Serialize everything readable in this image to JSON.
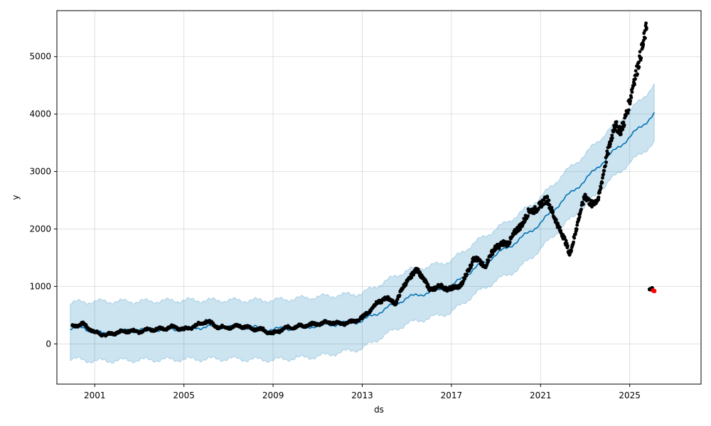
{
  "chart_data": {
    "type": "line",
    "xlabel": "ds",
    "ylabel": "y",
    "xlim": [
      1999.3,
      2028.2
    ],
    "ylim": [
      -700,
      5800
    ],
    "xticks": [
      2001,
      2005,
      2009,
      2013,
      2017,
      2021,
      2025
    ],
    "xtick_labels": [
      "2001",
      "2005",
      "2009",
      "2013",
      "2017",
      "2021",
      "2025"
    ],
    "yticks": [
      0,
      1000,
      2000,
      3000,
      4000,
      5000
    ],
    "ytick_labels": [
      "0",
      "1000",
      "2000",
      "3000",
      "4000",
      "5000"
    ],
    "grid": true,
    "colors": {
      "forecast": "#0072B2",
      "interval": "#0072B2",
      "observed": "#000000",
      "outlier": "#FF0000"
    },
    "series": [
      {
        "kind": "observed",
        "x": [
          2000.0,
          2000.5,
          2001.0,
          2001.5,
          2002.0,
          2002.5,
          2003.0,
          2003.5,
          2004.0,
          2004.5,
          2005.0,
          2005.5,
          2006.0,
          2006.5,
          2007.0,
          2007.5,
          2008.0,
          2008.5,
          2009.0,
          2009.5,
          2010.0,
          2010.5,
          2011.0,
          2011.5,
          2012.0,
          2012.5,
          2013.0,
          2013.5,
          2014.0,
          2014.5,
          2015.0,
          2015.5,
          2016.0,
          2016.5,
          2017.0,
          2017.5,
          2018.0,
          2018.5,
          2019.0,
          2019.5,
          2020.0,
          2020.5,
          2021.0,
          2021.3,
          2021.6,
          2022.0,
          2022.3,
          2022.6,
          2023.0,
          2023.3,
          2023.6,
          2024.0,
          2024.3,
          2024.6,
          2025.0,
          2025.2,
          2025.4,
          2025.6,
          2025.75
        ],
        "y": [
          320,
          340,
          200,
          150,
          200,
          230,
          210,
          250,
          260,
          300,
          250,
          310,
          400,
          300,
          280,
          320,
          270,
          250,
          180,
          270,
          300,
          320,
          350,
          380,
          350,
          380,
          450,
          650,
          800,
          720,
          1100,
          1300,
          950,
          1000,
          950,
          1050,
          1500,
          1350,
          1700,
          1750,
          2000,
          2300,
          2400,
          2550,
          2200,
          1900,
          1550,
          2000,
          2600,
          2400,
          2550,
          3300,
          3800,
          3700,
          4200,
          4600,
          4900,
          5200,
          5500
        ]
      },
      {
        "kind": "outlier",
        "x": [
          2025.9,
          2026.0,
          2026.05,
          2026.1
        ],
        "y": [
          950,
          970,
          930,
          920
        ]
      },
      {
        "kind": "forecast",
        "x": [
          1999.9,
          2000.5,
          2001.0,
          2001.5,
          2002.0,
          2003.0,
          2004.0,
          2005.0,
          2006.0,
          2007.0,
          2008.0,
          2009.0,
          2010.0,
          2011.0,
          2012.0,
          2013.0,
          2014.0,
          2015.0,
          2016.0,
          2017.0,
          2018.0,
          2019.0,
          2020.0,
          2021.0,
          2022.0,
          2023.0,
          2024.0,
          2025.0,
          2026.1
        ],
        "y": [
          270,
          280,
          200,
          170,
          220,
          240,
          250,
          260,
          300,
          300,
          290,
          250,
          280,
          320,
          350,
          400,
          600,
          800,
          900,
          1000,
          1300,
          1550,
          1800,
          2100,
          2500,
          2850,
          3250,
          3600,
          4000
        ]
      },
      {
        "kind": "interval",
        "x": [
          1999.9,
          2001.0,
          2003.0,
          2005.0,
          2007.0,
          2009.0,
          2011.0,
          2013.0,
          2014.0,
          2015.0,
          2016.0,
          2017.0,
          2018.0,
          2019.0,
          2020.0,
          2021.0,
          2022.0,
          2023.0,
          2024.0,
          2025.0,
          2026.1
        ],
        "lower": [
          -260,
          -300,
          -280,
          -270,
          -260,
          -280,
          -220,
          -80,
          150,
          350,
          450,
          550,
          850,
          1100,
          1300,
          1650,
          2050,
          2400,
          2800,
          3150,
          3500
        ],
        "upper": [
          720,
          740,
          740,
          760,
          760,
          760,
          820,
          880,
          1080,
          1280,
          1350,
          1450,
          1750,
          2000,
          2250,
          2550,
          2950,
          3300,
          3700,
          4050,
          4500
        ]
      }
    ]
  }
}
